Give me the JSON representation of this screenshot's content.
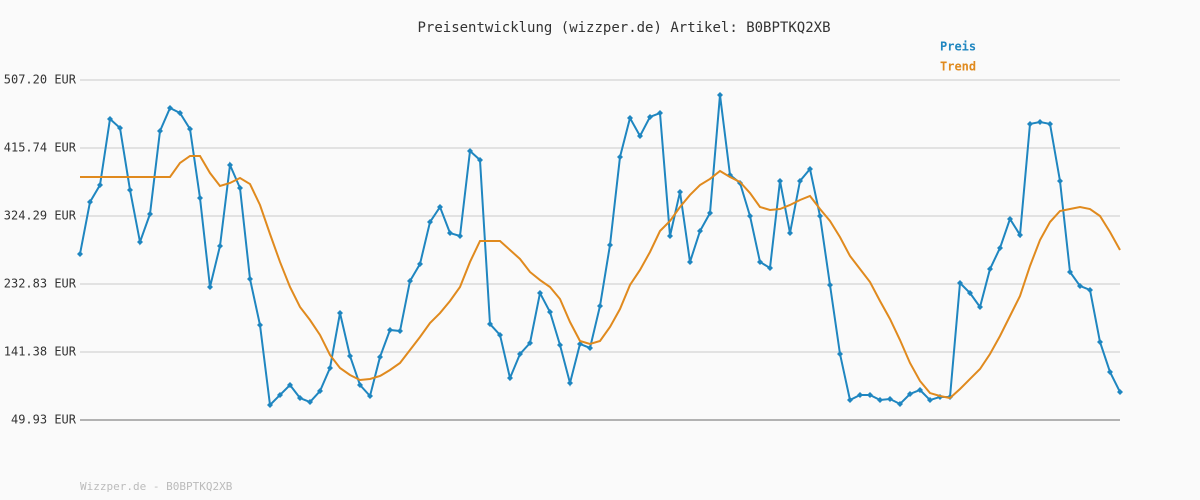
{
  "chart_data": {
    "type": "line",
    "title": "Preisentwicklung (wizzper.de) Artikel: B0BPTKQ2XB",
    "footer": "Wizzper.de - B0BPTKQ2XB",
    "categories": [
      null,
      null,
      null,
      null,
      null,
      null,
      null,
      null,
      null,
      null,
      null,
      null,
      null,
      null,
      null,
      null,
      null,
      null,
      null,
      null,
      null,
      null,
      null,
      null,
      null,
      null,
      null,
      null,
      null,
      null,
      null,
      null,
      null,
      null,
      null,
      null,
      null,
      null,
      null,
      null,
      null,
      null,
      null,
      null,
      null,
      null,
      null,
      null,
      null,
      null,
      null,
      null,
      null,
      null,
      null,
      null,
      null,
      null,
      null,
      null,
      null,
      null,
      null,
      null,
      null,
      null,
      null,
      null,
      null,
      null,
      null,
      null,
      null,
      null,
      null,
      null,
      null,
      null,
      null,
      null,
      null,
      null,
      null,
      null,
      null,
      null,
      null,
      null,
      null,
      null,
      null,
      null,
      null,
      null,
      null,
      null,
      null,
      null,
      null,
      null,
      null,
      null,
      null,
      null,
      null
    ],
    "series": [
      {
        "name": "Preis",
        "color": "#1f86c0",
        "markers": true,
        "values": [
          273.2,
          343.1,
          366,
          454.8,
          442.7,
          359.3,
          289.3,
          327,
          438.6,
          469.6,
          462.8,
          441.3,
          348.5,
          228.8,
          284,
          392.9,
          362,
          239.6,
          177.7,
          70.1,
          83.6,
          97,
          79.5,
          74.1,
          88.9,
          119.9,
          193.8,
          136,
          97,
          82.2,
          134.7,
          171,
          169.6,
          236.9,
          259.8,
          316.2,
          336.4,
          301.4,
          297.4,
          411.7,
          399.6,
          179,
          164.3,
          106.4,
          138.7,
          153.5,
          220.7,
          195.2,
          150.8,
          99.7,
          152.2,
          146.8,
          203.3,
          285.3,
          403.7,
          456.1,
          431.9,
          457.5,
          462.8,
          297.4,
          356.6,
          262.5,
          304.1,
          328.3,
          487.1,
          379.5,
          368.7,
          324.3,
          262.5,
          254.4,
          371.4,
          301.4,
          371.4,
          387.5,
          324.3,
          231.5,
          138.7,
          76.8,
          83.6,
          83.6,
          76.8,
          78.2,
          71.5,
          84.9,
          90.3,
          76.8,
          80.9,
          80.9,
          234.2,
          220.7,
          201.9,
          253,
          281.3,
          320.3,
          298.8,
          448.1,
          450.7,
          448.1,
          371.4,
          249,
          230.2,
          224.8,
          154.9,
          114.5,
          87.6
        ]
      },
      {
        "name": "Trend",
        "color": "#e08a1e",
        "markers": false,
        "values": [
          376.8,
          376.8,
          376.8,
          376.8,
          376.8,
          376.8,
          376.8,
          376.8,
          376.8,
          376.8,
          395.6,
          405,
          405,
          382.1,
          364.7,
          368.7,
          375.4,
          367.3,
          339.1,
          300.1,
          262.5,
          228.8,
          201.9,
          184.4,
          164.3,
          137.4,
          119.9,
          110.5,
          103.7,
          105.1,
          109.1,
          117.2,
          126.6,
          144.1,
          161.6,
          180.4,
          193.8,
          210,
          228.8,
          262.5,
          290.7,
          290.7,
          290.7,
          278.6,
          266.5,
          249,
          238.2,
          228.8,
          212.7,
          181.7,
          156.2,
          152.2,
          156.2,
          175,
          199.2,
          231.5,
          251.7,
          275.9,
          304.1,
          317.6,
          336.4,
          352.6,
          366,
          374.1,
          384.8,
          376.8,
          370,
          355.2,
          336.4,
          332.4,
          333.7,
          339.1,
          345.8,
          351.2,
          333.7,
          317.6,
          295.9,
          270.5,
          253,
          235.5,
          210,
          185.8,
          157.5,
          126.6,
          102.4,
          86.2,
          82.2,
          79.5,
          91.6,
          105.1,
          118.5,
          138.7,
          162.9,
          189.8,
          216.7,
          257.1,
          292,
          316.2,
          331,
          333.7,
          336.4,
          333.7,
          324.3,
          302.8,
          278.6
        ]
      }
    ],
    "ylim": [
      49.93,
      507.2
    ],
    "yticks": [
      {
        "value": 49.93,
        "label": "49.93 EUR"
      },
      {
        "value": 141.38,
        "label": "141.38 EUR"
      },
      {
        "value": 232.83,
        "label": "232.83 EUR"
      },
      {
        "value": 324.29,
        "label": "324.29 EUR"
      },
      {
        "value": 415.74,
        "label": "415.74 EUR"
      },
      {
        "value": 507.2,
        "label": "507.20 EUR"
      }
    ],
    "grid": true
  }
}
